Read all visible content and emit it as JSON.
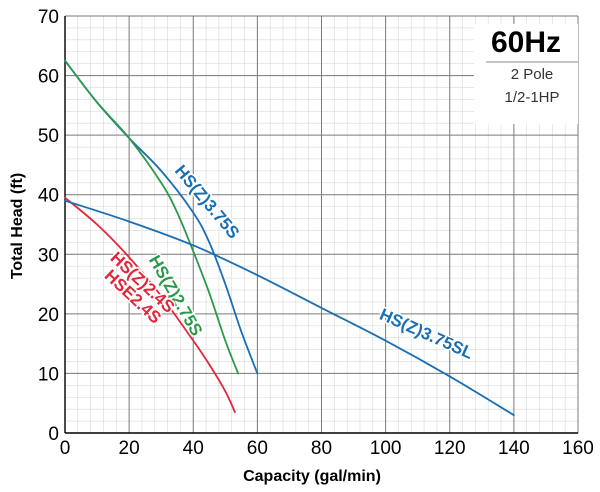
{
  "chart_data": {
    "type": "line",
    "info": {
      "title": "60Hz",
      "lines": [
        "2 Pole",
        "1/2-1HP"
      ]
    },
    "xlabel": "Capacity (gal/min)",
    "ylabel": "Total Head (ft)",
    "xlim": [
      0,
      160
    ],
    "ylim": [
      0,
      70
    ],
    "xticks": [
      0,
      20,
      40,
      60,
      80,
      100,
      120,
      140,
      160
    ],
    "yticks": [
      0,
      10,
      20,
      30,
      40,
      50,
      60,
      70
    ],
    "grid": true,
    "minor_grid": true,
    "series": [
      {
        "name": "HS(Z)3.75S",
        "color": "#1a6fb4",
        "x": [
          0,
          10,
          20,
          30,
          40,
          45,
          50,
          55,
          60
        ],
        "y": [
          62.5,
          55.5,
          49.5,
          44,
          37,
          32,
          25,
          17,
          10
        ]
      },
      {
        "name": "HS(Z)2.75S",
        "color": "#2a9a4a",
        "x": [
          0,
          10,
          20,
          30,
          35,
          40,
          45,
          50,
          54
        ],
        "y": [
          62.5,
          55.5,
          49.5,
          42,
          37,
          30.5,
          23.5,
          15.5,
          10
        ]
      },
      {
        "name": "HS(Z)2.4S / HSE2.4S",
        "color": "#e0283a",
        "x": [
          0,
          10,
          20,
          30,
          40,
          45,
          50,
          53
        ],
        "y": [
          39.5,
          35,
          29.5,
          23,
          15.5,
          11.5,
          7,
          3.5
        ]
      },
      {
        "name": "HS(Z)3.75SL",
        "color": "#1a6fb4",
        "x": [
          0,
          20,
          40,
          60,
          80,
          100,
          120,
          140
        ],
        "y": [
          39,
          35.5,
          31.5,
          26.5,
          21,
          15.5,
          9.5,
          3
        ]
      }
    ],
    "labels": [
      {
        "text": "HS(Z)3.75S",
        "color": "#1a6fb4"
      },
      {
        "text": "HS(Z)2.75S",
        "color": "#2a9a4a"
      },
      {
        "text": "HS(Z)2.4S",
        "color": "#e0283a"
      },
      {
        "text": "HSE2.4S",
        "color": "#e0283a"
      },
      {
        "text": "HS(Z)3.75SL",
        "color": "#1a6fb4"
      }
    ]
  }
}
